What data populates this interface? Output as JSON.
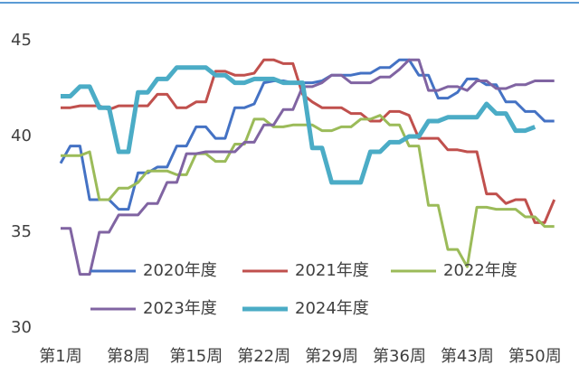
{
  "chart_data": {
    "type": "line",
    "categories": [
      "第1周",
      null,
      null,
      null,
      null,
      null,
      null,
      "第8周",
      null,
      null,
      null,
      null,
      null,
      null,
      "第15周",
      null,
      null,
      null,
      null,
      null,
      null,
      "第22周",
      null,
      null,
      null,
      null,
      null,
      null,
      "第29周",
      null,
      null,
      null,
      null,
      null,
      null,
      "第36周",
      null,
      null,
      null,
      null,
      null,
      null,
      "第43周",
      null,
      null,
      null,
      null,
      null,
      null,
      "第50周",
      null,
      null
    ],
    "series": [
      {
        "name": "2020年度",
        "color": "#4472c4",
        "values": [
          38.6,
          39.5,
          39.5,
          36.7,
          36.7,
          36.7,
          36.2,
          36.2,
          38.1,
          38.1,
          38.4,
          38.4,
          39.5,
          39.5,
          40.5,
          40.5,
          39.9,
          39.9,
          41.5,
          41.5,
          41.7,
          42.8,
          42.9,
          42.9,
          42.8,
          42.8,
          42.8,
          42.9,
          43.2,
          43.2,
          43.2,
          43.3,
          43.3,
          43.6,
          43.6,
          44,
          44,
          43.2,
          43.2,
          42,
          42,
          42.3,
          43,
          43,
          42.7,
          42.7,
          41.8,
          41.8,
          41.3,
          41.3,
          40.8,
          40.8
        ]
      },
      {
        "name": "2021年度",
        "color": "#c0504d",
        "values": [
          41.5,
          41.5,
          41.6,
          41.6,
          41.6,
          41.4,
          41.6,
          41.6,
          41.6,
          41.6,
          42.2,
          42.2,
          41.5,
          41.5,
          41.8,
          41.8,
          43.4,
          43.4,
          43.2,
          43.2,
          43.3,
          44,
          44,
          43.8,
          43.8,
          42.2,
          41.8,
          41.5,
          41.5,
          41.5,
          41.2,
          41.2,
          40.8,
          40.8,
          41.3,
          41.3,
          41.1,
          39.9,
          39.9,
          39.9,
          39.3,
          39.3,
          39.2,
          39.2,
          37,
          37,
          36.5,
          36.7,
          36.7,
          35.5,
          35.5,
          36.7
        ]
      },
      {
        "name": "2022年度",
        "color": "#9bbb59",
        "values": [
          39,
          39,
          39,
          39.2,
          36.7,
          36.7,
          37.3,
          37.3,
          37.6,
          38.2,
          38.2,
          38.2,
          38,
          38,
          39.1,
          39.1,
          38.7,
          38.7,
          39.6,
          39.6,
          40.9,
          40.9,
          40.5,
          40.5,
          40.6,
          40.6,
          40.6,
          40.3,
          40.3,
          40.5,
          40.5,
          40.9,
          40.9,
          41.1,
          40.6,
          40.6,
          39.5,
          39.5,
          36.4,
          36.4,
          34.1,
          34.1,
          33.2,
          36.3,
          36.3,
          36.2,
          36.2,
          36.2,
          35.8,
          35.8,
          35.3,
          35.3
        ]
      },
      {
        "name": "2023年度",
        "color": "#8064a2",
        "values": [
          35.2,
          35.2,
          32.8,
          32.8,
          35,
          35,
          35.9,
          35.9,
          35.9,
          36.5,
          36.5,
          37.6,
          37.6,
          39.1,
          39.1,
          39.2,
          39.2,
          39.2,
          39.2,
          39.7,
          39.7,
          40.6,
          40.6,
          41.4,
          41.4,
          42.6,
          42.6,
          42.8,
          43.2,
          43.2,
          42.8,
          42.8,
          42.8,
          43.1,
          43.1,
          43.5,
          44,
          44,
          42.4,
          42.4,
          42.6,
          42.6,
          42.4,
          42.9,
          42.9,
          42.5,
          42.5,
          42.7,
          42.7,
          42.9,
          42.9,
          42.9
        ]
      },
      {
        "name": "2024年度",
        "color": "#4bacc6",
        "values": [
          42.1,
          42.1,
          42.6,
          42.6,
          41.5,
          41.5,
          39.2,
          39.2,
          42.3,
          42.3,
          43,
          43,
          43.6,
          43.6,
          43.6,
          43.6,
          43.2,
          43.2,
          42.8,
          42.8,
          43,
          43,
          43,
          42.8,
          42.8,
          42.8,
          39.4,
          39.4,
          37.6,
          37.6,
          37.6,
          37.6,
          39.2,
          39.2,
          39.7,
          39.7,
          40,
          40,
          40.8,
          40.8,
          41,
          41,
          41,
          41,
          41.7,
          41.2,
          41.2,
          40.3,
          40.3,
          40.5,
          null,
          null
        ]
      }
    ],
    "ylim": [
      30,
      45
    ],
    "yticks": [
      30,
      35,
      40,
      45
    ],
    "grid": false
  }
}
